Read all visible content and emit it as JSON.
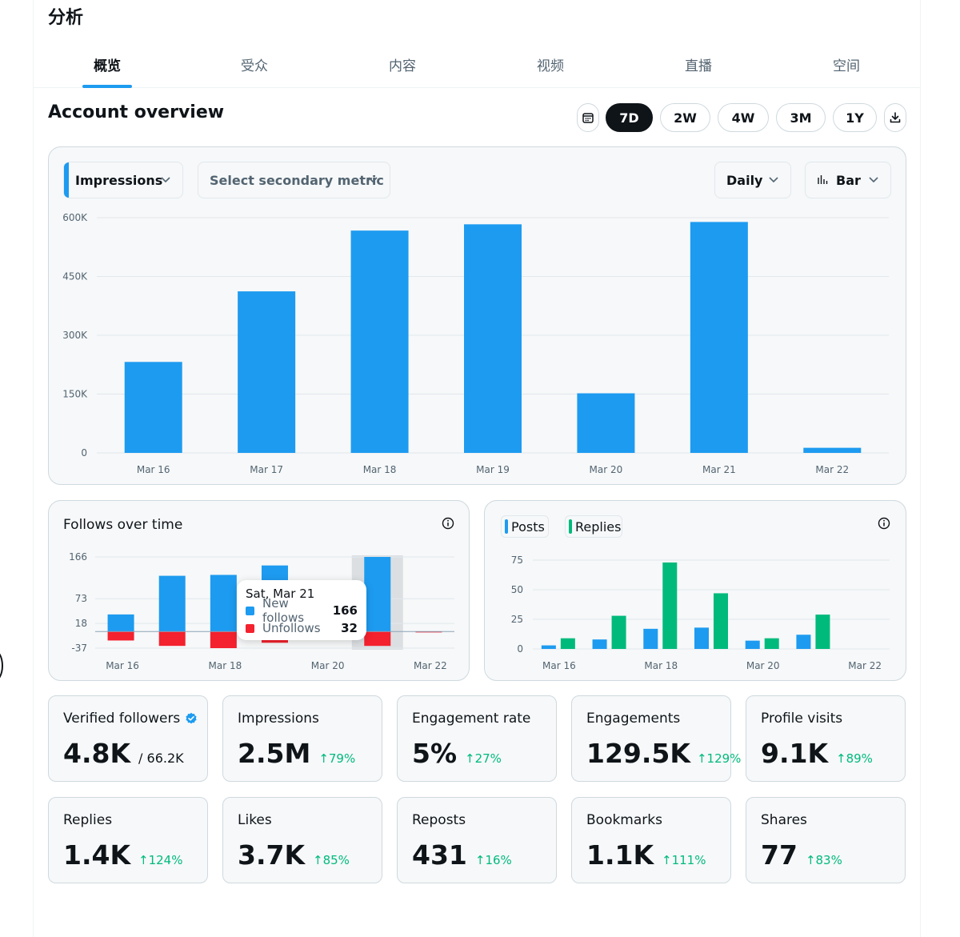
{
  "page": {
    "title": "分析"
  },
  "tabs": [
    {
      "label": "概览",
      "active": true
    },
    {
      "label": "受众",
      "active": false
    },
    {
      "label": "内容",
      "active": false
    },
    {
      "label": "视频",
      "active": false
    },
    {
      "label": "直播",
      "active": false
    },
    {
      "label": "空间",
      "active": false
    }
  ],
  "overview": {
    "title": "Account overview",
    "ranges": [
      "7D",
      "2W",
      "4W",
      "3M",
      "1Y"
    ],
    "active_range": "7D",
    "calendar_icon": "calendar-icon",
    "download_icon": "download-icon"
  },
  "main_chart": {
    "primary_metric": "Impressions",
    "secondary_metric": "Select secondary metric",
    "interval": "Daily",
    "chart_type": "Bar",
    "accent_color": "#1d9bf0"
  },
  "follows_card": {
    "title": "Follows over time",
    "tooltip": {
      "date": "Sat, Mar 21",
      "new_follows_label": "New follows",
      "new_follows_value": "166",
      "unfollows_label": "Unfollows",
      "unfollows_value": "32"
    }
  },
  "posts_card": {
    "legend_posts": "Posts",
    "legend_replies": "Replies"
  },
  "metrics": [
    {
      "label": "Verified followers",
      "value": "4.8K",
      "sub": "/ 66.2K",
      "verified": true
    },
    {
      "label": "Impressions",
      "value": "2.5M",
      "change": "↑79%"
    },
    {
      "label": "Engagement rate",
      "value": "5%",
      "change": "↑27%"
    },
    {
      "label": "Engagements",
      "value": "129.5K",
      "change": "↑129%"
    },
    {
      "label": "Profile visits",
      "value": "9.1K",
      "change": "↑89%"
    },
    {
      "label": "Replies",
      "value": "1.4K",
      "change": "↑124%"
    },
    {
      "label": "Likes",
      "value": "3.7K",
      "change": "↑85%"
    },
    {
      "label": "Reposts",
      "value": "431",
      "change": "↑16%"
    },
    {
      "label": "Bookmarks",
      "value": "1.1K",
      "change": "↑111%"
    },
    {
      "label": "Shares",
      "value": "77",
      "change": "↑83%"
    }
  ],
  "chart_data": [
    {
      "type": "bar",
      "categories": [
        "Mar 16",
        "Mar 17",
        "Mar 18",
        "Mar 19",
        "Mar 20",
        "Mar 21",
        "Mar 22"
      ],
      "series": [
        {
          "values": [
            232000,
            412000,
            567000,
            583000,
            152000,
            589000,
            13000
          ],
          "color": "#1d9bf0"
        }
      ],
      "ylim": [
        0,
        600000
      ],
      "yticks": [
        "0",
        "150K",
        "300K",
        "450K",
        "600K"
      ],
      "yticks_values": [
        0,
        150000,
        300000,
        450000,
        600000
      ],
      "grid": true
    },
    {
      "type": "bar",
      "categories": [
        "Mar 16",
        "Mar 17",
        "Mar 18",
        "Mar 19",
        "Mar 20",
        "Mar 21",
        "Mar 22"
      ],
      "xtick_labels": [
        "Mar 16",
        "Mar 18",
        "Mar 20",
        "Mar 22"
      ],
      "series": [
        {
          "name": "New follows",
          "values": [
            38,
            124,
            126,
            147,
            0,
            166,
            0
          ],
          "color": "#1d9bf0"
        },
        {
          "name": "Unfollows",
          "values": [
            -20,
            -32,
            -37,
            -25,
            -3,
            -32,
            -2
          ],
          "color": "#f4212e"
        }
      ],
      "ylim": [
        -37,
        166
      ],
      "yticks": [
        "-37",
        "18",
        "73",
        "166"
      ],
      "yticks_values": [
        -37,
        18,
        73,
        166
      ],
      "highlight_category": "Mar 21",
      "grid": true
    },
    {
      "type": "bar",
      "categories": [
        "Mar 16",
        "Mar 17",
        "Mar 18",
        "Mar 19",
        "Mar 20",
        "Mar 21",
        "Mar 22"
      ],
      "xtick_labels": [
        "Mar 16",
        "Mar 18",
        "Mar 20",
        "Mar 22"
      ],
      "series": [
        {
          "name": "Posts",
          "values": [
            3,
            8,
            17,
            18,
            7,
            12,
            0
          ],
          "color": "#1d9bf0"
        },
        {
          "name": "Replies",
          "values": [
            9,
            28,
            73,
            47,
            9,
            29,
            0
          ],
          "color": "#00ba7c"
        }
      ],
      "ylim": [
        0,
        75
      ],
      "yticks": [
        "0",
        "25",
        "50",
        "75"
      ],
      "yticks_values": [
        0,
        25,
        50,
        75
      ],
      "grid": true
    }
  ]
}
